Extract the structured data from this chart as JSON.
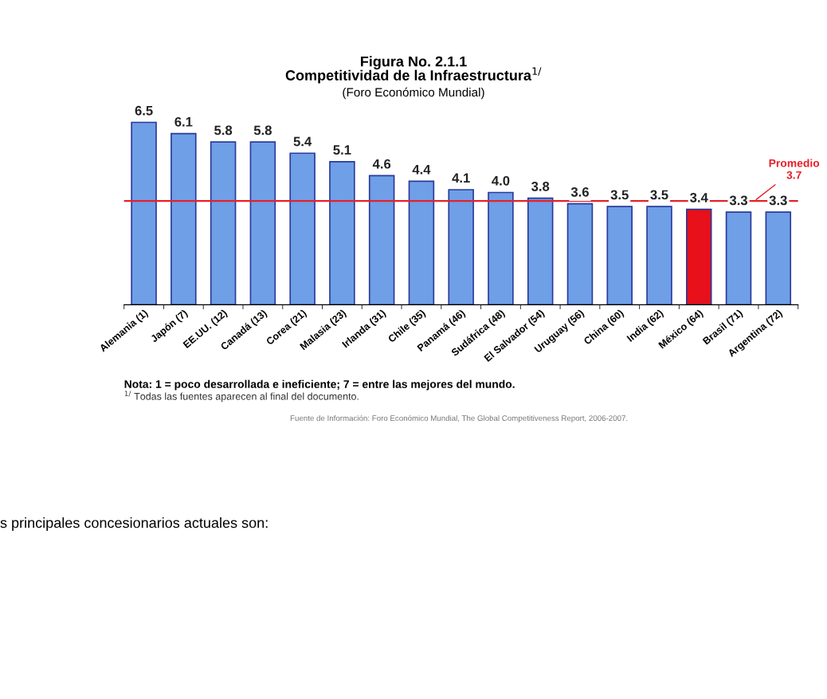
{
  "chart_data": {
    "type": "bar",
    "title": "Competitividad de la Infraestructura$^{1/}$",
    "subtitle": "(Foro Económico Mundial)",
    "categories": [
      "Alemania (1)",
      "Japón (7)",
      "EE.UU. (12)",
      "Canadá (13)",
      "Corea (21)",
      "Malasia (23)",
      "Irlanda (31)",
      "Chile (35)",
      "Panamá (46)",
      "Sudáfrica (48)",
      "El Salvador (54)",
      "Uruguay (56)",
      "China (60)",
      "India (62)",
      "México (64)",
      "Brasil (71)",
      "Argentina (72)"
    ],
    "values": [
      6.5,
      6.1,
      5.8,
      5.8,
      5.4,
      5.1,
      4.6,
      4.4,
      4.1,
      4.0,
      3.8,
      3.6,
      3.5,
      3.5,
      3.4,
      3.3,
      3.3
    ],
    "colors": [
      "#6f9fe6",
      "#6f9fe6",
      "#6f9fe6",
      "#6f9fe6",
      "#6f9fe6",
      "#6f9fe6",
      "#6f9fe6",
      "#6f9fe6",
      "#6f9fe6",
      "#6f9fe6",
      "#6f9fe6",
      "#6f9fe6",
      "#6f9fe6",
      "#6f9fe6",
      "#e8101a",
      "#6f9fe6",
      "#6f9fe6"
    ],
    "value_labels": [
      "6.5",
      "6.1",
      "5.8",
      "5.8",
      "5.4",
      "5.1",
      "4.6",
      "4.4",
      "4.1",
      "4.0",
      "3.8",
      "3.6",
      "3.5",
      "3.5",
      "3.4",
      "3.3",
      "3.3"
    ],
    "tick_labels": "x",
    "grid": false,
    "ref_lines": [
      {
        "axis": "y",
        "value": 3.7,
        "label": "Promedio\n3.7",
        "color": "#e8202a",
        "line_style": "solid"
      }
    ],
    "annotations": [
      "Figura No. 2.1.1",
      "Nota: 1 = poco desarrollada e ineficiente; 7 = entre las mejores del mundo.",
      "$^{1/}$ Todas las fuentes aparecen al final del documento.",
      "Fuente de Información: Foro Económico Mundial, The Global Competitiveness Report, 2006-2007.",
      "s principales concesionarios actuales son:"
    ]
  }
}
